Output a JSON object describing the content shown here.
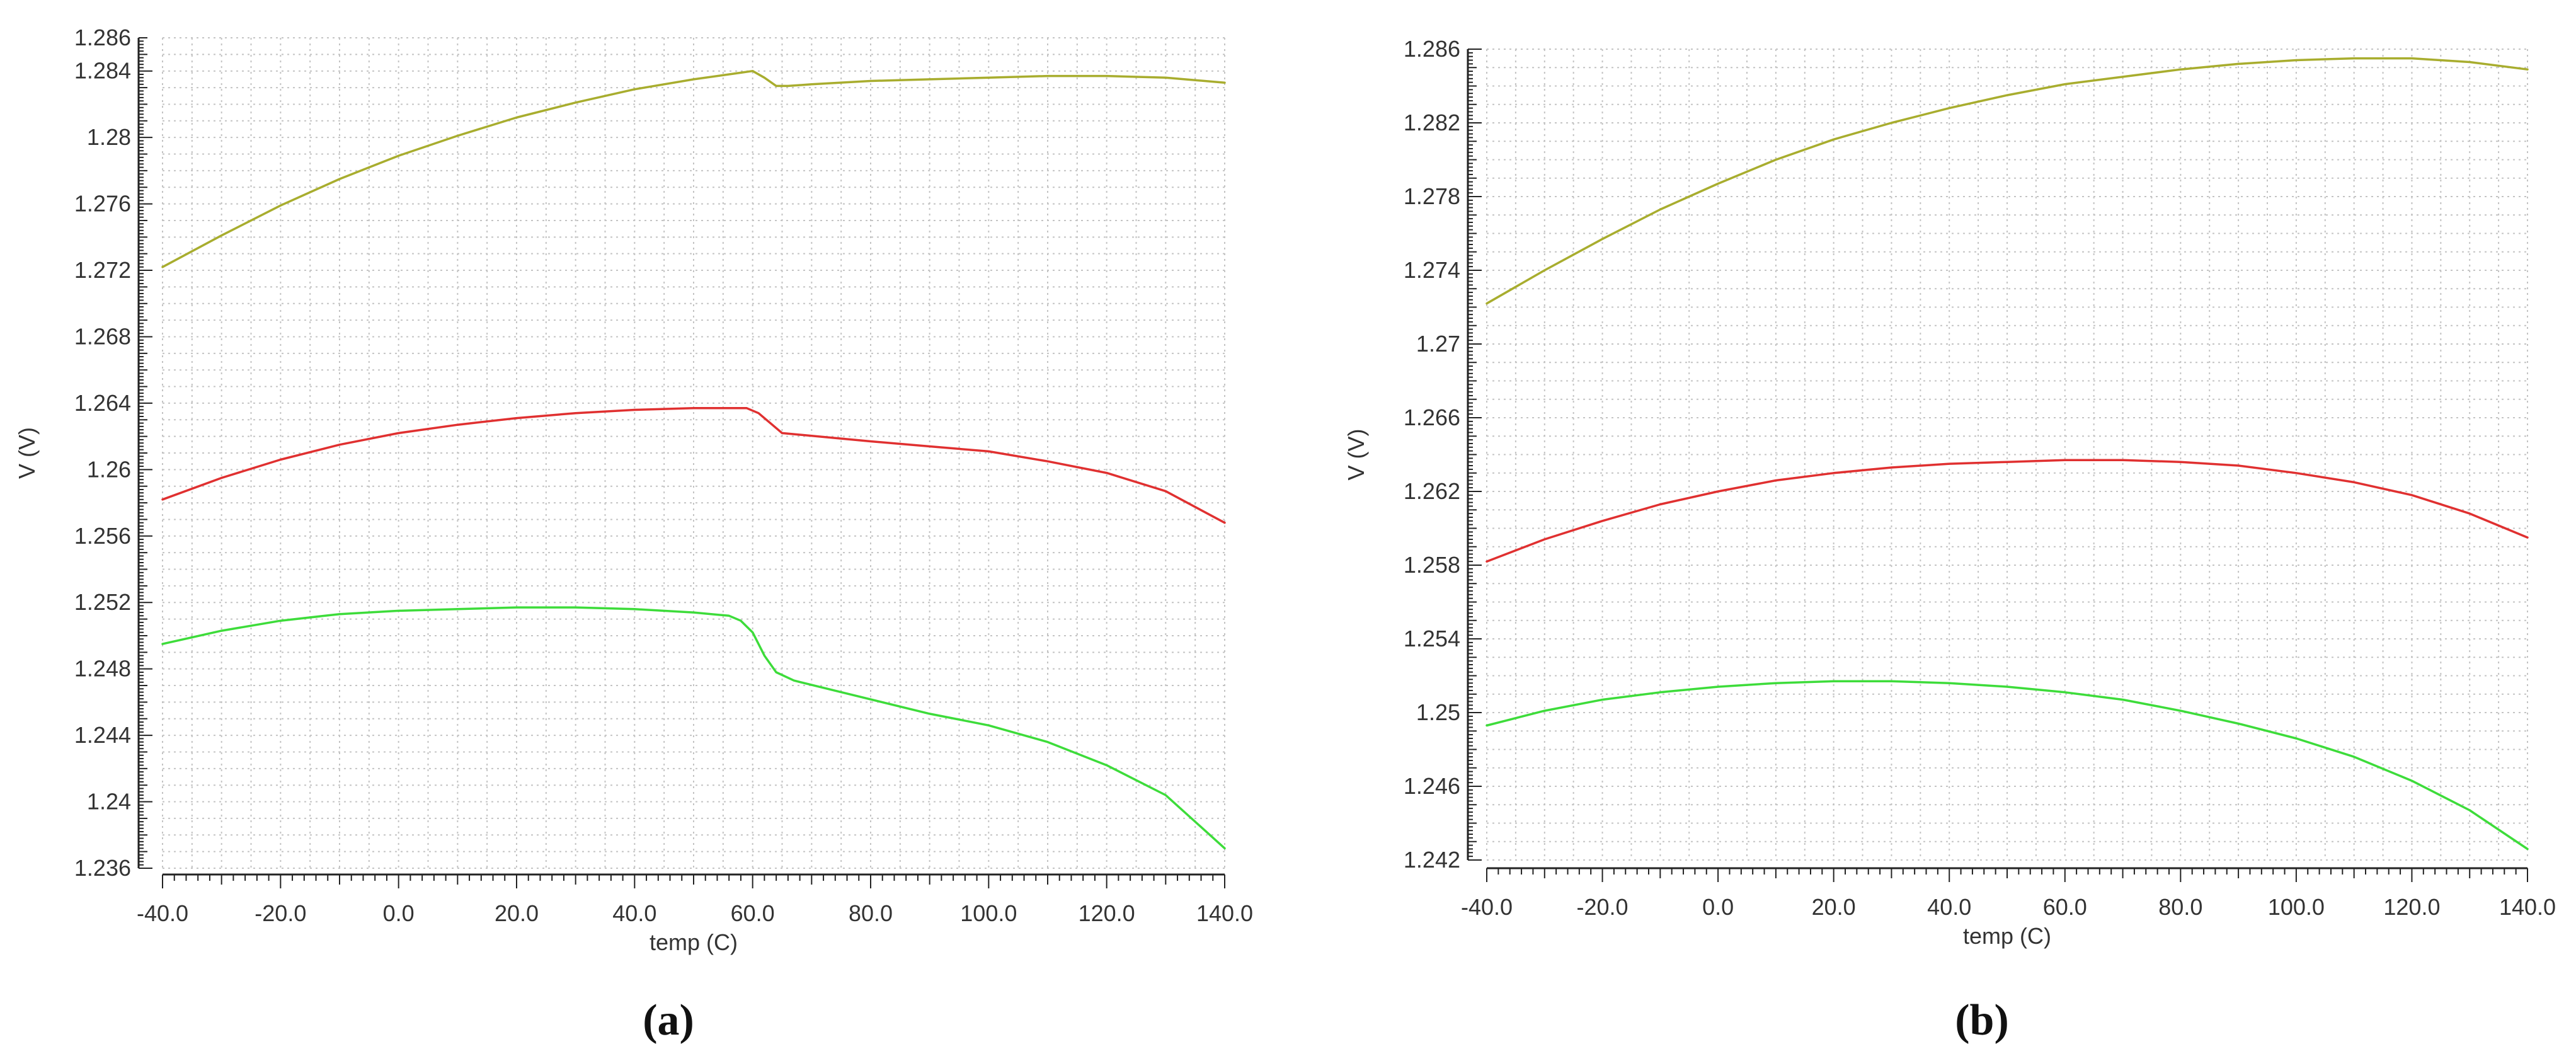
{
  "chart_data": [
    {
      "type": "line",
      "caption": "(a)",
      "xlabel": "temp (C)",
      "ylabel": "V (V)",
      "xlim": [
        -40,
        140
      ],
      "ylim": [
        1.236,
        1.286
      ],
      "x_ticks": [
        "-40.0",
        "-20.0",
        "0.0",
        "20.0",
        "40.0",
        "60.0",
        "80.0",
        "100.0",
        "120.0",
        "140.0"
      ],
      "y_ticks": [
        "1.236",
        "1.24",
        "1.244",
        "1.248",
        "1.252",
        "1.256",
        "1.26",
        "1.264",
        "1.268",
        "1.272",
        "1.276",
        "1.28",
        "1.284",
        "1.286"
      ],
      "grid": true,
      "series": [
        {
          "color": "#a8ad2e",
          "points": [
            [
              -40,
              1.2722
            ],
            [
              -30,
              1.2741
            ],
            [
              -20,
              1.2759
            ],
            [
              -10,
              1.2775
            ],
            [
              0,
              1.2789
            ],
            [
              10,
              1.2801
            ],
            [
              20,
              1.2812
            ],
            [
              30,
              1.2821
            ],
            [
              40,
              1.2829
            ],
            [
              50,
              1.2835
            ],
            [
              58,
              1.2839
            ],
            [
              60,
              1.284
            ],
            [
              62,
              1.2836
            ],
            [
              64,
              1.2831
            ],
            [
              66,
              1.2831
            ],
            [
              70,
              1.2832
            ],
            [
              80,
              1.2834
            ],
            [
              90,
              1.2835
            ],
            [
              100,
              1.2836
            ],
            [
              110,
              1.2837
            ],
            [
              120,
              1.2837
            ],
            [
              130,
              1.2836
            ],
            [
              140,
              1.2833
            ]
          ]
        },
        {
          "color": "#e03030",
          "points": [
            [
              -40,
              1.2582
            ],
            [
              -30,
              1.2595
            ],
            [
              -20,
              1.2606
            ],
            [
              -10,
              1.2615
            ],
            [
              0,
              1.2622
            ],
            [
              10,
              1.2627
            ],
            [
              20,
              1.2631
            ],
            [
              30,
              1.2634
            ],
            [
              40,
              1.2636
            ],
            [
              50,
              1.2637
            ],
            [
              59,
              1.2637
            ],
            [
              61,
              1.2634
            ],
            [
              63,
              1.2628
            ],
            [
              65,
              1.2622
            ],
            [
              68,
              1.2621
            ],
            [
              80,
              1.2617
            ],
            [
              90,
              1.2614
            ],
            [
              100,
              1.2611
            ],
            [
              110,
              1.2605
            ],
            [
              120,
              1.2598
            ],
            [
              130,
              1.2587
            ],
            [
              140,
              1.2568
            ]
          ]
        },
        {
          "color": "#3ddc3a",
          "points": [
            [
              -40,
              1.2495
            ],
            [
              -30,
              1.2503
            ],
            [
              -20,
              1.2509
            ],
            [
              -10,
              1.2513
            ],
            [
              0,
              1.2515
            ],
            [
              10,
              1.2516
            ],
            [
              20,
              1.2517
            ],
            [
              30,
              1.2517
            ],
            [
              40,
              1.2516
            ],
            [
              50,
              1.2514
            ],
            [
              56,
              1.2512
            ],
            [
              58,
              1.2509
            ],
            [
              60,
              1.2502
            ],
            [
              62,
              1.2488
            ],
            [
              64,
              1.2478
            ],
            [
              67,
              1.2473
            ],
            [
              75,
              1.2466
            ],
            [
              90,
              1.2453
            ],
            [
              100,
              1.2446
            ],
            [
              110,
              1.2436
            ],
            [
              120,
              1.2422
            ],
            [
              130,
              1.2404
            ],
            [
              140,
              1.2372
            ]
          ]
        }
      ]
    },
    {
      "type": "line",
      "caption": "(b)",
      "xlabel": "temp (C)",
      "ylabel": "V (V)",
      "xlim": [
        -40,
        140
      ],
      "ylim": [
        1.242,
        1.286
      ],
      "x_ticks": [
        "-40.0",
        "-20.0",
        "0.0",
        "20.0",
        "40.0",
        "60.0",
        "80.0",
        "100.0",
        "120.0",
        "140.0"
      ],
      "y_ticks": [
        "1.242",
        "1.246",
        "1.25",
        "1.254",
        "1.258",
        "1.262",
        "1.266",
        "1.27",
        "1.274",
        "1.278",
        "1.282",
        "1.286"
      ],
      "grid": true,
      "series": [
        {
          "color": "#a8ad2e",
          "points": [
            [
              -40,
              1.2722
            ],
            [
              -30,
              1.274
            ],
            [
              -20,
              1.2757
            ],
            [
              -10,
              1.2773
            ],
            [
              0,
              1.2787
            ],
            [
              10,
              1.28
            ],
            [
              20,
              1.2811
            ],
            [
              30,
              1.282
            ],
            [
              40,
              1.2828
            ],
            [
              50,
              1.2835
            ],
            [
              60,
              1.2841
            ],
            [
              70,
              1.2845
            ],
            [
              80,
              1.2849
            ],
            [
              90,
              1.2852
            ],
            [
              100,
              1.2854
            ],
            [
              110,
              1.2855
            ],
            [
              120,
              1.2855
            ],
            [
              130,
              1.2853
            ],
            [
              140,
              1.2849
            ]
          ]
        },
        {
          "color": "#e03030",
          "points": [
            [
              -40,
              1.2582
            ],
            [
              -30,
              1.2594
            ],
            [
              -20,
              1.2604
            ],
            [
              -10,
              1.2613
            ],
            [
              0,
              1.262
            ],
            [
              10,
              1.2626
            ],
            [
              20,
              1.263
            ],
            [
              30,
              1.2633
            ],
            [
              40,
              1.2635
            ],
            [
              50,
              1.2636
            ],
            [
              60,
              1.2637
            ],
            [
              70,
              1.2637
            ],
            [
              80,
              1.2636
            ],
            [
              90,
              1.2634
            ],
            [
              100,
              1.263
            ],
            [
              110,
              1.2625
            ],
            [
              120,
              1.2618
            ],
            [
              130,
              1.2608
            ],
            [
              140,
              1.2595
            ]
          ]
        },
        {
          "color": "#3ddc3a",
          "points": [
            [
              -40,
              1.2493
            ],
            [
              -30,
              1.2501
            ],
            [
              -20,
              1.2507
            ],
            [
              -10,
              1.2511
            ],
            [
              0,
              1.2514
            ],
            [
              10,
              1.2516
            ],
            [
              20,
              1.2517
            ],
            [
              30,
              1.2517
            ],
            [
              40,
              1.2516
            ],
            [
              50,
              1.2514
            ],
            [
              60,
              1.2511
            ],
            [
              70,
              1.2507
            ],
            [
              80,
              1.2501
            ],
            [
              90,
              1.2494
            ],
            [
              100,
              1.2486
            ],
            [
              110,
              1.2476
            ],
            [
              120,
              1.2463
            ],
            [
              130,
              1.2447
            ],
            [
              140,
              1.2426
            ]
          ]
        }
      ]
    }
  ]
}
